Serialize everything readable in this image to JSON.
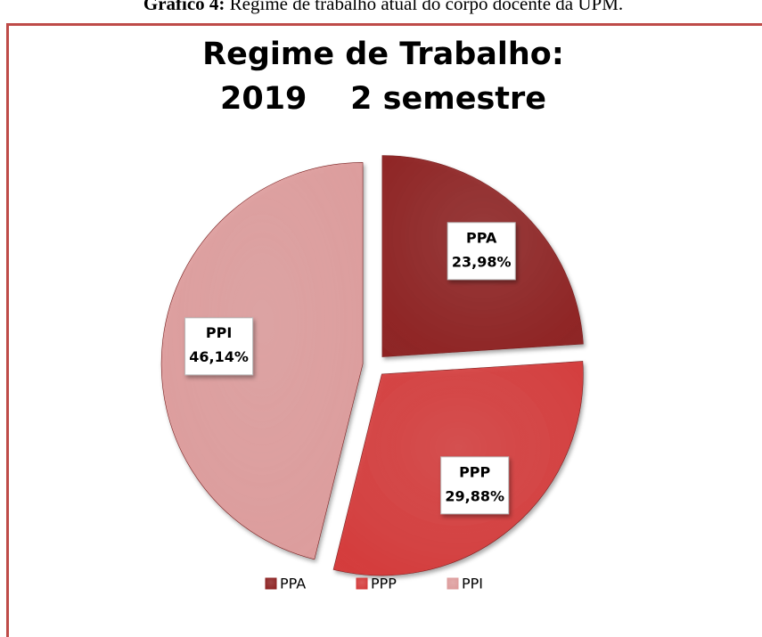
{
  "caption_label": "Gráfico 4:",
  "caption": "Regime de trabalho atual do corpo docente da UPM.",
  "chart_data": {
    "type": "pie",
    "title_lines": [
      "Regime de Trabalho:",
      "2019    2 semestre"
    ],
    "categories": [
      "PPA",
      "PPP",
      "PPI"
    ],
    "values": [
      23.98,
      29.88,
      46.14
    ],
    "value_labels": [
      "23,98%",
      "29,88%",
      "46,14%"
    ],
    "colors": [
      "#8e2424",
      "#d43c3c",
      "#dd9c9c"
    ],
    "legend": "bottom"
  }
}
